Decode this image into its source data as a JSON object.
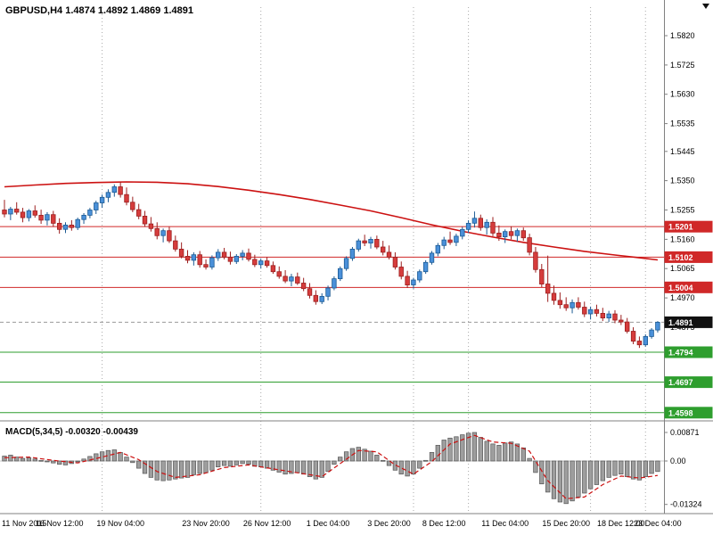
{
  "header": {
    "title": "GBPUSD,H4 1.4874 1.4892 1.4869 1.4891"
  },
  "macd_panel": {
    "label": "MACD(5,34,5) -0.00320 -0.00439"
  },
  "chart_data": {
    "type": "candlestick",
    "symbol": "GBPUSD",
    "timeframe": "H4",
    "quote": {
      "open": 1.4874,
      "high": 1.4892,
      "low": 1.4869,
      "close": 1.4891
    },
    "indicator": "MACD(5,34,5)",
    "colors": {
      "up": "#4a90d9",
      "up_stroke": "#1c5b94",
      "down": "#d63c3c",
      "down_stroke": "#9c1f1f",
      "ma": "#cc1111",
      "grid": "#aaaaaa",
      "hist_fill": "#9e9e9e",
      "hist_stroke": "#555555",
      "signal": "#cc1111",
      "flag_red": "#d02828",
      "flag_green": "#2e9e2e",
      "flag_black": "#111111",
      "current_line": "#999999"
    },
    "price_axis_ticks": [
      "1.5820",
      "1.5725",
      "1.5630",
      "1.5535",
      "1.5445",
      "1.5350",
      "1.5255",
      "1.5160",
      "1.5065",
      "1.4970",
      "1.4875"
    ],
    "time_labels": [
      {
        "bar": 0,
        "text": "11 Nov 2015"
      },
      {
        "bar": 9,
        "text": "16 Nov 12:00"
      },
      {
        "bar": 19,
        "text": "19 Nov 04:00"
      },
      {
        "bar": 33,
        "text": "23 Nov 20:00"
      },
      {
        "bar": 43,
        "text": "26 Nov 12:00"
      },
      {
        "bar": 53,
        "text": "1 Dec 04:00"
      },
      {
        "bar": 63,
        "text": "3 Dec 20:00"
      },
      {
        "bar": 72,
        "text": "8 Dec 12:00"
      },
      {
        "bar": 82,
        "text": "11 Dec 04:00"
      },
      {
        "bar": 92,
        "text": "15 Dec 20:00"
      },
      {
        "bar": 101,
        "text": "18 Dec 12:00"
      },
      {
        "bar": 107,
        "text": "23 Dec 04:00"
      }
    ],
    "period_separator_bars": [
      16,
      42,
      67,
      76,
      96,
      105
    ],
    "hlines": [
      {
        "price": 1.5201,
        "kind": "resistance",
        "flag": "1.5201"
      },
      {
        "price": 1.5102,
        "kind": "resistance",
        "flag": "1.5102"
      },
      {
        "price": 1.5004,
        "kind": "resistance",
        "flag": "1.5004"
      },
      {
        "price": 1.4891,
        "kind": "current",
        "flag": "1.4891"
      },
      {
        "price": 1.4794,
        "kind": "support",
        "flag": "1.4794"
      },
      {
        "price": 1.4697,
        "kind": "support",
        "flag": "1.4697"
      },
      {
        "price": 1.4598,
        "kind": "support",
        "flag": "1.4598"
      }
    ],
    "candles": [
      [
        1.5255,
        1.5288,
        1.5231,
        1.5242
      ],
      [
        1.5242,
        1.5265,
        1.5222,
        1.5258
      ],
      [
        1.5258,
        1.528,
        1.524,
        1.5248
      ],
      [
        1.5248,
        1.5262,
        1.5215,
        1.523
      ],
      [
        1.523,
        1.5258,
        1.5218,
        1.5252
      ],
      [
        1.5252,
        1.527,
        1.523,
        1.5238
      ],
      [
        1.5238,
        1.5256,
        1.521,
        1.5222
      ],
      [
        1.5222,
        1.5248,
        1.5205,
        1.524
      ],
      [
        1.524,
        1.5252,
        1.52,
        1.5212
      ],
      [
        1.5212,
        1.5228,
        1.5178,
        1.5192
      ],
      [
        1.5192,
        1.5215,
        1.518,
        1.5206
      ],
      [
        1.5206,
        1.5222,
        1.5188,
        1.5198
      ],
      [
        1.5198,
        1.523,
        1.519,
        1.5224
      ],
      [
        1.5224,
        1.5245,
        1.521,
        1.5238
      ],
      [
        1.5238,
        1.5262,
        1.5228,
        1.5255
      ],
      [
        1.5255,
        1.5285,
        1.5242,
        1.5278
      ],
      [
        1.5278,
        1.5305,
        1.5262,
        1.5296
      ],
      [
        1.5296,
        1.5322,
        1.528,
        1.5312
      ],
      [
        1.5312,
        1.5338,
        1.5298,
        1.533
      ],
      [
        1.533,
        1.5345,
        1.5295,
        1.5305
      ],
      [
        1.5305,
        1.5328,
        1.527,
        1.528
      ],
      [
        1.528,
        1.5298,
        1.5248,
        1.5256
      ],
      [
        1.5256,
        1.5275,
        1.5225,
        1.5235
      ],
      [
        1.5235,
        1.5252,
        1.52,
        1.521
      ],
      [
        1.521,
        1.5232,
        1.5185,
        1.5195
      ],
      [
        1.5195,
        1.5215,
        1.516,
        1.5172
      ],
      [
        1.5172,
        1.5195,
        1.515,
        1.5188
      ],
      [
        1.5188,
        1.52,
        1.5148,
        1.5155
      ],
      [
        1.5155,
        1.5172,
        1.512,
        1.5128
      ],
      [
        1.5128,
        1.515,
        1.5098,
        1.5105
      ],
      [
        1.5105,
        1.5125,
        1.5082,
        1.5092
      ],
      [
        1.5092,
        1.5118,
        1.5075,
        1.511
      ],
      [
        1.511,
        1.5122,
        1.5068,
        1.5078
      ],
      [
        1.5078,
        1.5095,
        1.5062,
        1.507
      ],
      [
        1.507,
        1.5108,
        1.5062,
        1.51
      ],
      [
        1.51,
        1.5128,
        1.509,
        1.5118
      ],
      [
        1.5118,
        1.5132,
        1.5095,
        1.5102
      ],
      [
        1.5102,
        1.512,
        1.5078,
        1.5088
      ],
      [
        1.5088,
        1.5112,
        1.508,
        1.5105
      ],
      [
        1.5105,
        1.5125,
        1.5092,
        1.5115
      ],
      [
        1.5115,
        1.513,
        1.5088,
        1.5095
      ],
      [
        1.5095,
        1.511,
        1.507,
        1.5078
      ],
      [
        1.5078,
        1.5098,
        1.5065,
        1.509
      ],
      [
        1.509,
        1.5102,
        1.5068,
        1.5075
      ],
      [
        1.5075,
        1.5088,
        1.5048,
        1.5055
      ],
      [
        1.5055,
        1.5072,
        1.5032,
        1.504
      ],
      [
        1.504,
        1.506,
        1.5018,
        1.5025
      ],
      [
        1.5025,
        1.5048,
        1.5008,
        1.5038
      ],
      [
        1.5038,
        1.5052,
        1.5012,
        1.5018
      ],
      [
        1.5018,
        1.5035,
        1.4992,
        1.5
      ],
      [
        1.5,
        1.5018,
        1.4968,
        1.4978
      ],
      [
        1.4978,
        1.4995,
        1.4948,
        1.4958
      ],
      [
        1.4958,
        1.4985,
        1.495,
        1.4975
      ],
      [
        1.4975,
        1.501,
        1.4962,
        1.5002
      ],
      [
        1.5002,
        1.504,
        1.4995,
        1.5032
      ],
      [
        1.5032,
        1.5072,
        1.5025,
        1.5065
      ],
      [
        1.5065,
        1.5105,
        1.5058,
        1.5098
      ],
      [
        1.5098,
        1.5135,
        1.509,
        1.5128
      ],
      [
        1.5128,
        1.5162,
        1.512,
        1.5155
      ],
      [
        1.5155,
        1.5175,
        1.5138,
        1.5148
      ],
      [
        1.5148,
        1.5168,
        1.513,
        1.516
      ],
      [
        1.516,
        1.5172,
        1.5128,
        1.5135
      ],
      [
        1.5135,
        1.5155,
        1.5108,
        1.5118
      ],
      [
        1.5118,
        1.514,
        1.5095,
        1.5102
      ],
      [
        1.5102,
        1.5118,
        1.5062,
        1.507
      ],
      [
        1.507,
        1.5088,
        1.503,
        1.504
      ],
      [
        1.504,
        1.5058,
        1.5002,
        1.5012
      ],
      [
        1.5012,
        1.5035,
        1.5,
        1.5028
      ],
      [
        1.5028,
        1.5062,
        1.502,
        1.5055
      ],
      [
        1.5055,
        1.5092,
        1.5048,
        1.5085
      ],
      [
        1.5085,
        1.5122,
        1.5078,
        1.5115
      ],
      [
        1.5115,
        1.5148,
        1.5105,
        1.514
      ],
      [
        1.514,
        1.5168,
        1.5128,
        1.5158
      ],
      [
        1.5158,
        1.5185,
        1.5142,
        1.515
      ],
      [
        1.515,
        1.5178,
        1.5138,
        1.517
      ],
      [
        1.517,
        1.52,
        1.516,
        1.5192
      ],
      [
        1.5192,
        1.5222,
        1.518,
        1.5212
      ],
      [
        1.5212,
        1.525,
        1.5198,
        1.5228
      ],
      [
        1.5228,
        1.524,
        1.5188,
        1.5198
      ],
      [
        1.5198,
        1.5225,
        1.5175,
        1.5215
      ],
      [
        1.5215,
        1.5232,
        1.517,
        1.518
      ],
      [
        1.518,
        1.5205,
        1.5155,
        1.5168
      ],
      [
        1.5168,
        1.5192,
        1.5148,
        1.5185
      ],
      [
        1.5185,
        1.5202,
        1.516,
        1.5172
      ],
      [
        1.5172,
        1.5195,
        1.5152,
        1.5188
      ],
      [
        1.5188,
        1.5198,
        1.5155,
        1.5165
      ],
      [
        1.5165,
        1.5178,
        1.5108,
        1.5118
      ],
      [
        1.5118,
        1.5135,
        1.5052,
        1.5062
      ],
      [
        1.5062,
        1.508,
        1.5005,
        1.5015
      ],
      [
        1.5015,
        1.5107,
        1.4957,
        1.4985
      ],
      [
        1.4985,
        1.501,
        1.4948,
        1.4962
      ],
      [
        1.4962,
        1.4988,
        1.4935,
        1.4948
      ],
      [
        1.4948,
        1.4972,
        1.4928,
        1.4938
      ],
      [
        1.4938,
        1.4965,
        1.492,
        1.4955
      ],
      [
        1.4955,
        1.4972,
        1.4932,
        1.494
      ],
      [
        1.494,
        1.4958,
        1.4908,
        1.4918
      ],
      [
        1.4918,
        1.4942,
        1.49,
        1.4932
      ],
      [
        1.4932,
        1.4948,
        1.491,
        1.492
      ],
      [
        1.492,
        1.4938,
        1.4895,
        1.4905
      ],
      [
        1.4905,
        1.4928,
        1.4892,
        1.4918
      ],
      [
        1.4918,
        1.493,
        1.4888,
        1.4898
      ],
      [
        1.4898,
        1.4915,
        1.4882,
        1.4892
      ],
      [
        1.4892,
        1.4905,
        1.4855,
        1.4862
      ],
      [
        1.4862,
        1.4875,
        1.482,
        1.483
      ],
      [
        1.483,
        1.4845,
        1.4808,
        1.4818
      ],
      [
        1.4818,
        1.4852,
        1.4812,
        1.4845
      ],
      [
        1.4845,
        1.4872,
        1.4838,
        1.4866
      ],
      [
        1.4866,
        1.4895,
        1.4858,
        1.4891
      ]
    ],
    "ma_points": [
      [
        0,
        1.533
      ],
      [
        5,
        1.5336
      ],
      [
        10,
        1.5341
      ],
      [
        15,
        1.5344
      ],
      [
        20,
        1.5346
      ],
      [
        25,
        1.5345
      ],
      [
        30,
        1.534
      ],
      [
        35,
        1.5331
      ],
      [
        40,
        1.5319
      ],
      [
        45,
        1.5305
      ],
      [
        50,
        1.5289
      ],
      [
        55,
        1.5271
      ],
      [
        60,
        1.5252
      ],
      [
        65,
        1.523
      ],
      [
        70,
        1.5207
      ],
      [
        75,
        1.5186
      ],
      [
        80,
        1.5167
      ],
      [
        85,
        1.515
      ],
      [
        90,
        1.5135
      ],
      [
        95,
        1.5121
      ],
      [
        100,
        1.5109
      ],
      [
        104,
        1.51
      ],
      [
        107,
        1.5093
      ]
    ],
    "macd": {
      "label": "MACD(5,34,5)",
      "value": -0.0032,
      "signal_value": -0.00439,
      "axis_ticks": [
        "0.00871",
        "0.00",
        "-0.01324"
      ],
      "axis_tick_values": [
        0.00871,
        0,
        -0.01324
      ],
      "histogram": [
        0.0015,
        0.0018,
        0.0012,
        0.0008,
        0.001,
        0.0006,
        0.0002,
        -0.0002,
        -0.0006,
        -0.001,
        -0.0012,
        -0.0008,
        -0.0002,
        0.0006,
        0.0014,
        0.0022,
        0.0028,
        0.0032,
        0.0034,
        0.0026,
        0.0012,
        -0.0005,
        -0.0022,
        -0.0038,
        -0.005,
        -0.0058,
        -0.006,
        -0.0058,
        -0.0055,
        -0.0052,
        -0.005,
        -0.0042,
        -0.0038,
        -0.0036,
        -0.0028,
        -0.0018,
        -0.0014,
        -0.0016,
        -0.0012,
        -0.0008,
        -0.001,
        -0.0016,
        -0.0018,
        -0.0022,
        -0.0028,
        -0.0034,
        -0.004,
        -0.0038,
        -0.0036,
        -0.004,
        -0.0048,
        -0.0055,
        -0.005,
        -0.0032,
        -0.001,
        0.0012,
        0.0028,
        0.0038,
        0.0042,
        0.0036,
        0.003,
        0.0018,
        0.0002,
        -0.0014,
        -0.0028,
        -0.004,
        -0.0046,
        -0.004,
        -0.0022,
        0.0002,
        0.0026,
        0.0048,
        0.0064,
        0.007,
        0.0074,
        0.008,
        0.0085,
        0.0087,
        0.0072,
        0.006,
        0.0052,
        0.0048,
        0.0055,
        0.0058,
        0.0052,
        0.004,
        0.0008,
        -0.0035,
        -0.007,
        -0.0095,
        -0.0115,
        -0.0125,
        -0.013,
        -0.0122,
        -0.011,
        -0.0098,
        -0.0085,
        -0.0072,
        -0.006,
        -0.005,
        -0.0044,
        -0.004,
        -0.0048,
        -0.0055,
        -0.0058,
        -0.0048,
        -0.0038,
        -0.0032
      ],
      "signal_points": [
        [
          0,
          0.001
        ],
        [
          4,
          0.0012
        ],
        [
          8,
          0.0002
        ],
        [
          12,
          -0.0006
        ],
        [
          16,
          0.0012
        ],
        [
          19,
          0.0026
        ],
        [
          22,
          0.0004
        ],
        [
          25,
          -0.0032
        ],
        [
          28,
          -0.005
        ],
        [
          32,
          -0.0042
        ],
        [
          36,
          -0.002
        ],
        [
          40,
          -0.0012
        ],
        [
          44,
          -0.0024
        ],
        [
          48,
          -0.0036
        ],
        [
          52,
          -0.0048
        ],
        [
          55,
          -0.0008
        ],
        [
          58,
          0.0032
        ],
        [
          61,
          0.0028
        ],
        [
          64,
          -0.0012
        ],
        [
          67,
          -0.004
        ],
        [
          70,
          -0.0002
        ],
        [
          73,
          0.0052
        ],
        [
          77,
          0.0078
        ],
        [
          80,
          0.0058
        ],
        [
          83,
          0.0054
        ],
        [
          86,
          0.003
        ],
        [
          89,
          -0.006
        ],
        [
          92,
          -0.0115
        ],
        [
          95,
          -0.011
        ],
        [
          98,
          -0.0072
        ],
        [
          101,
          -0.0046
        ],
        [
          104,
          -0.0052
        ],
        [
          107,
          -0.0044
        ]
      ]
    }
  }
}
